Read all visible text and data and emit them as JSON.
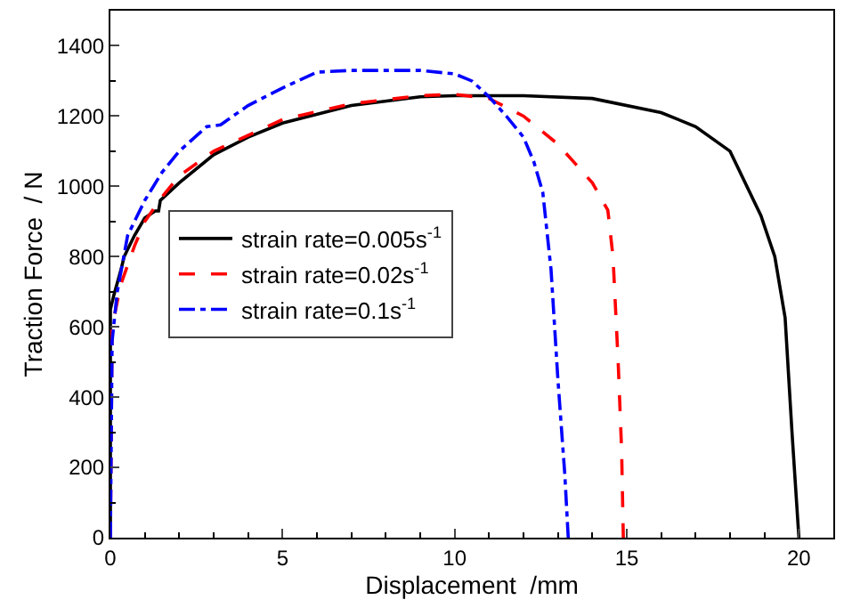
{
  "chart_data": {
    "type": "line",
    "xlabel": "Displacement  /mm",
    "ylabel": "Traction Force  / N",
    "xlim": [
      0,
      21
    ],
    "xticks": [
      0,
      5,
      10,
      15,
      20
    ],
    "ylim": [
      0,
      1500
    ],
    "yticks": [
      0,
      200,
      400,
      600,
      800,
      1000,
      1200,
      1400
    ],
    "legend": "center left",
    "series": [
      {
        "name": "strain rate=0.005s$^{-1}$",
        "color": "#000000",
        "line_style": "solid",
        "x": [
          0,
          0,
          0.1,
          0.3,
          0.4,
          0.7,
          1,
          1.3,
          1.4,
          1.45,
          2,
          3,
          4,
          5,
          7,
          9,
          10,
          12,
          14,
          16,
          17,
          18,
          18.9,
          19.3,
          19.6,
          19.8,
          20
        ],
        "values": [
          0,
          650,
          690,
          760,
          800,
          860,
          910,
          930,
          930,
          960,
          1010,
          1090,
          1140,
          1180,
          1230,
          1255,
          1258,
          1258,
          1250,
          1210,
          1170,
          1100,
          916,
          800,
          626,
          300,
          0
        ]
      },
      {
        "name": "strain rate=0.02s$^{-1}$",
        "color": "#ff0000",
        "line_style": "dashed",
        "x": [
          0,
          0.05,
          0.3,
          0.7,
          1,
          1.5,
          2,
          3,
          5,
          7,
          9,
          10,
          11,
          12,
          13,
          14,
          14.45,
          14.6,
          14.75,
          14.85,
          14.9
        ],
        "values": [
          0,
          600,
          720,
          830,
          900,
          970,
          1030,
          1100,
          1190,
          1235,
          1258,
          1262,
          1250,
          1200,
          1120,
          1010,
          932,
          800,
          500,
          250,
          0
        ]
      },
      {
        "name": "strain rate=0.1s$^{-1}$",
        "color": "#0000ff",
        "line_style": "dashdot",
        "x": [
          0,
          0.05,
          0.2,
          0.5,
          1,
          1.5,
          2,
          2.8,
          3.2,
          4,
          5,
          6,
          7,
          9,
          10,
          10.5,
          11,
          11.5,
          12,
          12.3,
          12.56,
          12.8,
          13,
          13.2,
          13.3
        ],
        "values": [
          0,
          560,
          700,
          860,
          960,
          1040,
          1100,
          1170,
          1175,
          1230,
          1280,
          1325,
          1330,
          1330,
          1320,
          1300,
          1255,
          1200,
          1140,
          1070,
          983,
          763,
          450,
          180,
          0
        ]
      }
    ]
  }
}
